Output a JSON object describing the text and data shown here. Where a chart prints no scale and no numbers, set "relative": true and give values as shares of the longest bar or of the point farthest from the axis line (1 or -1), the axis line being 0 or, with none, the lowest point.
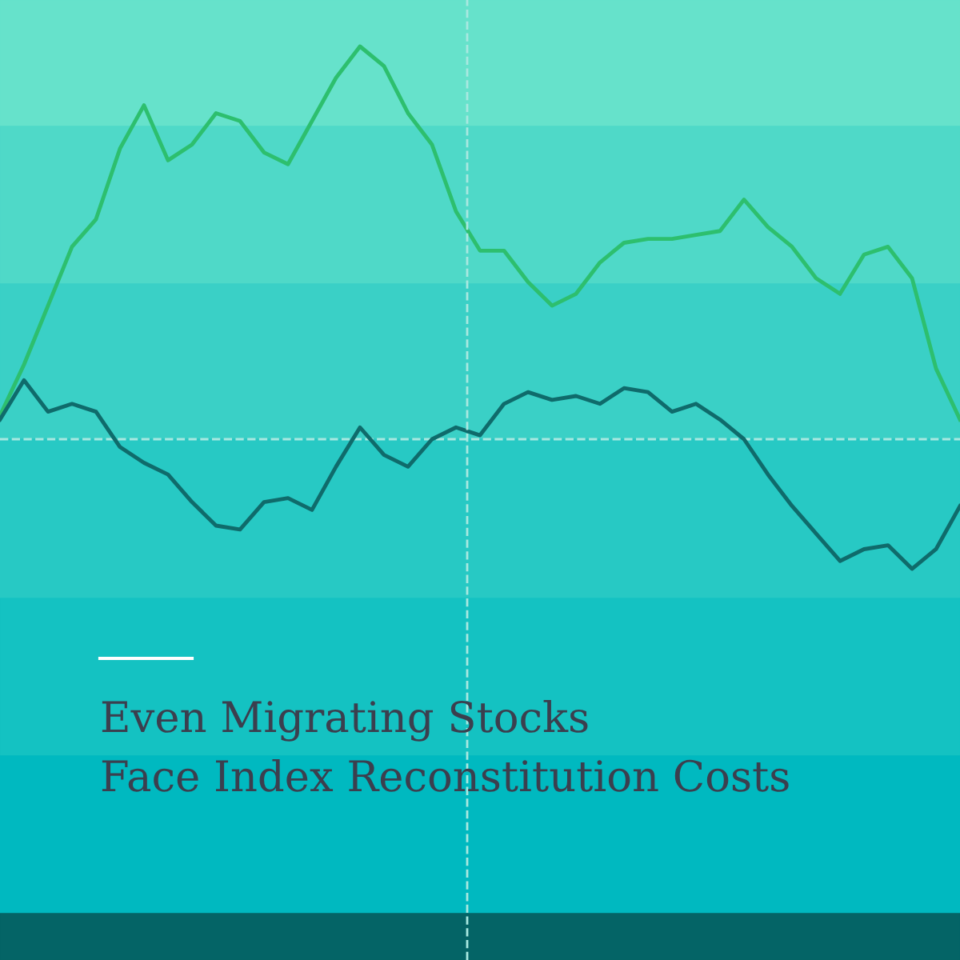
{
  "chart_data": {
    "type": "line",
    "relative": true,
    "title": "Even Migrating Stocks\nFace Index Reconstitution Costs",
    "line_style": "solid",
    "categories": [
      null,
      null,
      null,
      null,
      null,
      null,
      null,
      null,
      null,
      null,
      null,
      null,
      null,
      null,
      null,
      null,
      null,
      null,
      null,
      null,
      null,
      null,
      null,
      null,
      null,
      null,
      null,
      null,
      null,
      null,
      null,
      null,
      null,
      null,
      null,
      null,
      null,
      null,
      null,
      null,
      null
    ],
    "series": [
      {
        "color": "#2dbf6e",
        "values": [
          0.06,
          0.19,
          0.34,
          0.49,
          0.56,
          0.74,
          0.85,
          0.71,
          0.75,
          0.83,
          0.81,
          0.73,
          0.7,
          0.81,
          0.92,
          1,
          0.95,
          0.83,
          0.75,
          0.58,
          0.48,
          0.48,
          0.4,
          0.34,
          0.37,
          0.45,
          0.5,
          0.51,
          0.51,
          0.52,
          0.53,
          0.61,
          0.54,
          0.49,
          0.41,
          0.37,
          0.47,
          0.49,
          0.41,
          0.18,
          0.05
        ]
      },
      {
        "color": "#0f6b6b",
        "values": [
          0.05,
          0.15,
          0.07,
          0.09,
          0.07,
          -0.02,
          -0.06,
          -0.09,
          -0.16,
          -0.22,
          -0.23,
          -0.16,
          -0.15,
          -0.18,
          -0.07,
          0.03,
          -0.04,
          -0.07,
          0,
          0.03,
          0.01,
          0.09,
          0.12,
          0.1,
          0.11,
          0.09,
          0.13,
          0.12,
          0.07,
          0.09,
          0.05,
          0,
          -0.09,
          -0.17,
          -0.24,
          -0.31,
          -0.28,
          -0.27,
          -0.33,
          -0.28,
          -0.17
        ]
      }
    ],
    "ref_lines": [
      {
        "axis": "y",
        "value": 0,
        "color": "#a8e8e0",
        "line_style": "dashed"
      }
    ]
  }
}
